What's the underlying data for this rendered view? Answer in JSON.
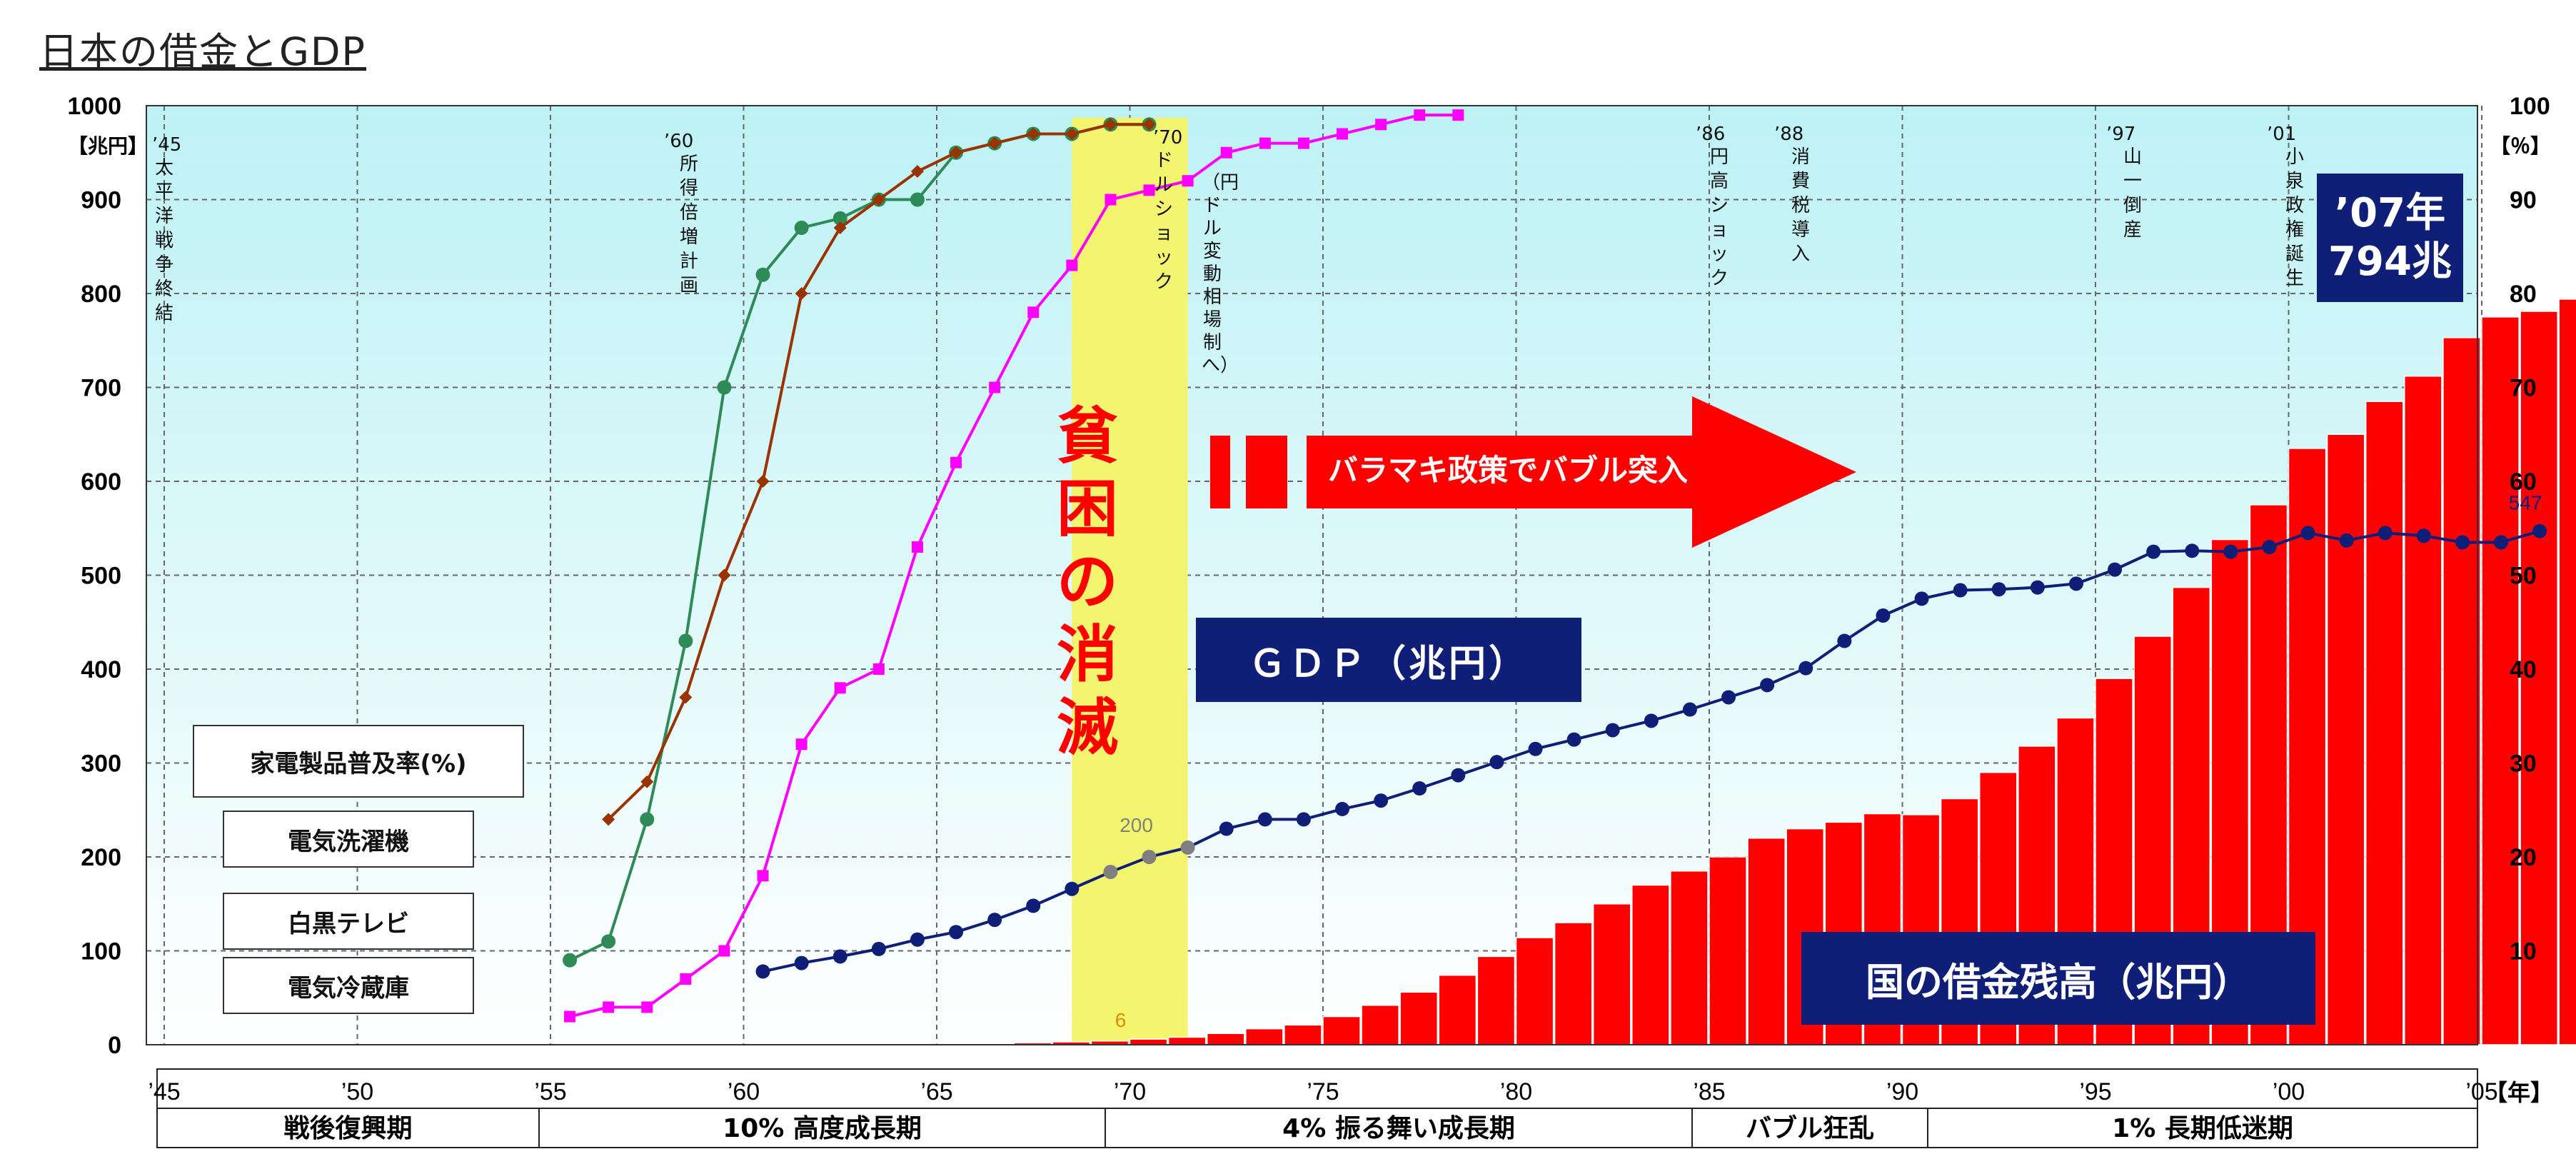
{
  "title": "日本の借金とGDP",
  "units": {
    "left": "【兆円】",
    "right": "【％】",
    "year": "【年】"
  },
  "events": [
    {
      "year": "’45",
      "label": "太平洋戦争終結"
    },
    {
      "year": "’60",
      "label": "所得倍増計画"
    },
    {
      "year": "’70",
      "label": "ドルショック"
    },
    {
      "year": "",
      "label": "（円ドル変動相場制へ）"
    },
    {
      "year": "’86",
      "label": "円高ショック"
    },
    {
      "year": "’88",
      "label": "消費税導入"
    },
    {
      "year": "’97",
      "label": "山一倒産"
    },
    {
      "year": "’01",
      "label": "小泉政権誕生"
    }
  ],
  "legend": {
    "header": "家電製品普及率(%)",
    "washer": "電気洗濯機",
    "tv": "白黒テレビ",
    "fridge": "電気冷蔵庫"
  },
  "labels": {
    "poverty": "貧困の消滅",
    "bubble_arrow": "バラマキ政策でバブル突入",
    "gdp_box": "ＧＤＰ（兆円）",
    "debt_box": "国の借金残高（兆円）",
    "callout_line1": "’07年",
    "callout_line2": "794兆",
    "gdp_200": "200",
    "gdp_547": "547",
    "debt_6": "6"
  },
  "eras": [
    {
      "label": "戦後復興期"
    },
    {
      "label": "10% 高度成長期"
    },
    {
      "label": "4% 振る舞い成長期"
    },
    {
      "label": "バブル狂乱"
    },
    {
      "label": "1% 長期低迷期"
    }
  ],
  "colors": {
    "debt": "#ff0000",
    "gdp": "#0f1f78",
    "gdp_highlight": "#808080",
    "washer": "#2e8b57",
    "tv": "#ff00ff",
    "fridge": "#993300",
    "poverty_band": "#f4f56e"
  },
  "chart_data": {
    "type": "bar+line",
    "xlabel": "【年】",
    "ylabel_left": "【兆円】",
    "ylabel_right": "【％】",
    "xlim": [
      1945,
      2007
    ],
    "ylim_left": [
      0,
      1000
    ],
    "ylim_right": [
      0,
      100
    ],
    "grid": true,
    "yticks_left": [
      0,
      100,
      200,
      300,
      400,
      500,
      600,
      700,
      800,
      900,
      1000
    ],
    "yticks_right": [
      10,
      20,
      30,
      40,
      50,
      60,
      70,
      80,
      90,
      100
    ],
    "xtick_labels": [
      "’45",
      "’50",
      "’55",
      "’60",
      "’65",
      "’70",
      "’75",
      "’80",
      "’85",
      "’90",
      "’95",
      "’00",
      "’05"
    ],
    "xtick_years": [
      1945,
      1950,
      1955,
      1960,
      1965,
      1970,
      1975,
      1980,
      1985,
      1990,
      1995,
      2000,
      2005
    ],
    "poverty_band": [
      1968.5,
      1971.5
    ],
    "series": [
      {
        "name": "国の借金残高（兆円）",
        "type": "bar",
        "axis": "left",
        "x": [
          1965,
          1966,
          1967,
          1968,
          1969,
          1970,
          1971,
          1972,
          1973,
          1974,
          1975,
          1976,
          1977,
          1978,
          1979,
          1980,
          1981,
          1982,
          1983,
          1984,
          1985,
          1986,
          1987,
          1988,
          1989,
          1990,
          1991,
          1992,
          1993,
          1994,
          1995,
          1996,
          1997,
          1998,
          1999,
          2000,
          2001,
          2002,
          2003,
          2004,
          2005,
          2006,
          2007
        ],
        "values": [
          0.5,
          1,
          2,
          3,
          4,
          6,
          8,
          12,
          17,
          21,
          30,
          42,
          56,
          74,
          94,
          114,
          130,
          150,
          170,
          185,
          200,
          220,
          230,
          237,
          246,
          245,
          262,
          290,
          318,
          348,
          390,
          435,
          487,
          538,
          575,
          635,
          650,
          685,
          712,
          753,
          775,
          781,
          794
        ]
      },
      {
        "name": "ＧＤＰ（兆円）",
        "type": "line",
        "axis": "left",
        "x": [
          1960,
          1961,
          1962,
          1963,
          1964,
          1965,
          1966,
          1967,
          1968,
          1969,
          1970,
          1971,
          1972,
          1973,
          1974,
          1975,
          1976,
          1977,
          1978,
          1979,
          1980,
          1981,
          1982,
          1983,
          1984,
          1985,
          1986,
          1987,
          1988,
          1989,
          1990,
          1991,
          1992,
          1993,
          1994,
          1995,
          1996,
          1997,
          1998,
          1999,
          2000,
          2001,
          2002,
          2003,
          2004,
          2005,
          2006
        ],
        "values": [
          78,
          87,
          94,
          102,
          112,
          120,
          133,
          148,
          166,
          184,
          200,
          210,
          230,
          240,
          240,
          251,
          260,
          273,
          287,
          301,
          315,
          325,
          335,
          345,
          357,
          370,
          383,
          401,
          430,
          457,
          475,
          484,
          485,
          487,
          491,
          506,
          525,
          526,
          525,
          530,
          545,
          537,
          545,
          542,
          535,
          535,
          547
        ]
      },
      {
        "name": "電気洗濯機",
        "type": "line",
        "axis": "right",
        "x": [
          1955,
          1956,
          1957,
          1958,
          1959,
          1960,
          1961,
          1962,
          1963,
          1964,
          1965,
          1966,
          1967,
          1968,
          1969,
          1970
        ],
        "values": [
          9,
          11,
          24,
          43,
          70,
          82,
          87,
          88,
          90,
          90,
          95,
          96,
          97,
          97,
          98,
          98
        ]
      },
      {
        "name": "白黒テレビ",
        "type": "line",
        "axis": "right",
        "x": [
          1955,
          1956,
          1957,
          1958,
          1959,
          1960,
          1961,
          1962,
          1963,
          1964,
          1965,
          1966,
          1967,
          1968,
          1969,
          1970,
          1971,
          1972,
          1973,
          1974,
          1975,
          1976,
          1977,
          1978
        ],
        "values": [
          3,
          4,
          4,
          7,
          10,
          18,
          32,
          38,
          40,
          53,
          62,
          70,
          78,
          83,
          90,
          91,
          92,
          95,
          96,
          96,
          97,
          98,
          99,
          99
        ]
      },
      {
        "name": "電気冷蔵庫",
        "type": "line",
        "axis": "right",
        "x": [
          1956,
          1957,
          1958,
          1959,
          1960,
          1961,
          1962,
          1963,
          1964,
          1965,
          1966,
          1967,
          1968,
          1969,
          1970
        ],
        "values": [
          24,
          28,
          37,
          50,
          60,
          80,
          87,
          90,
          93,
          95,
          96,
          97,
          97,
          98,
          98
        ]
      }
    ]
  }
}
